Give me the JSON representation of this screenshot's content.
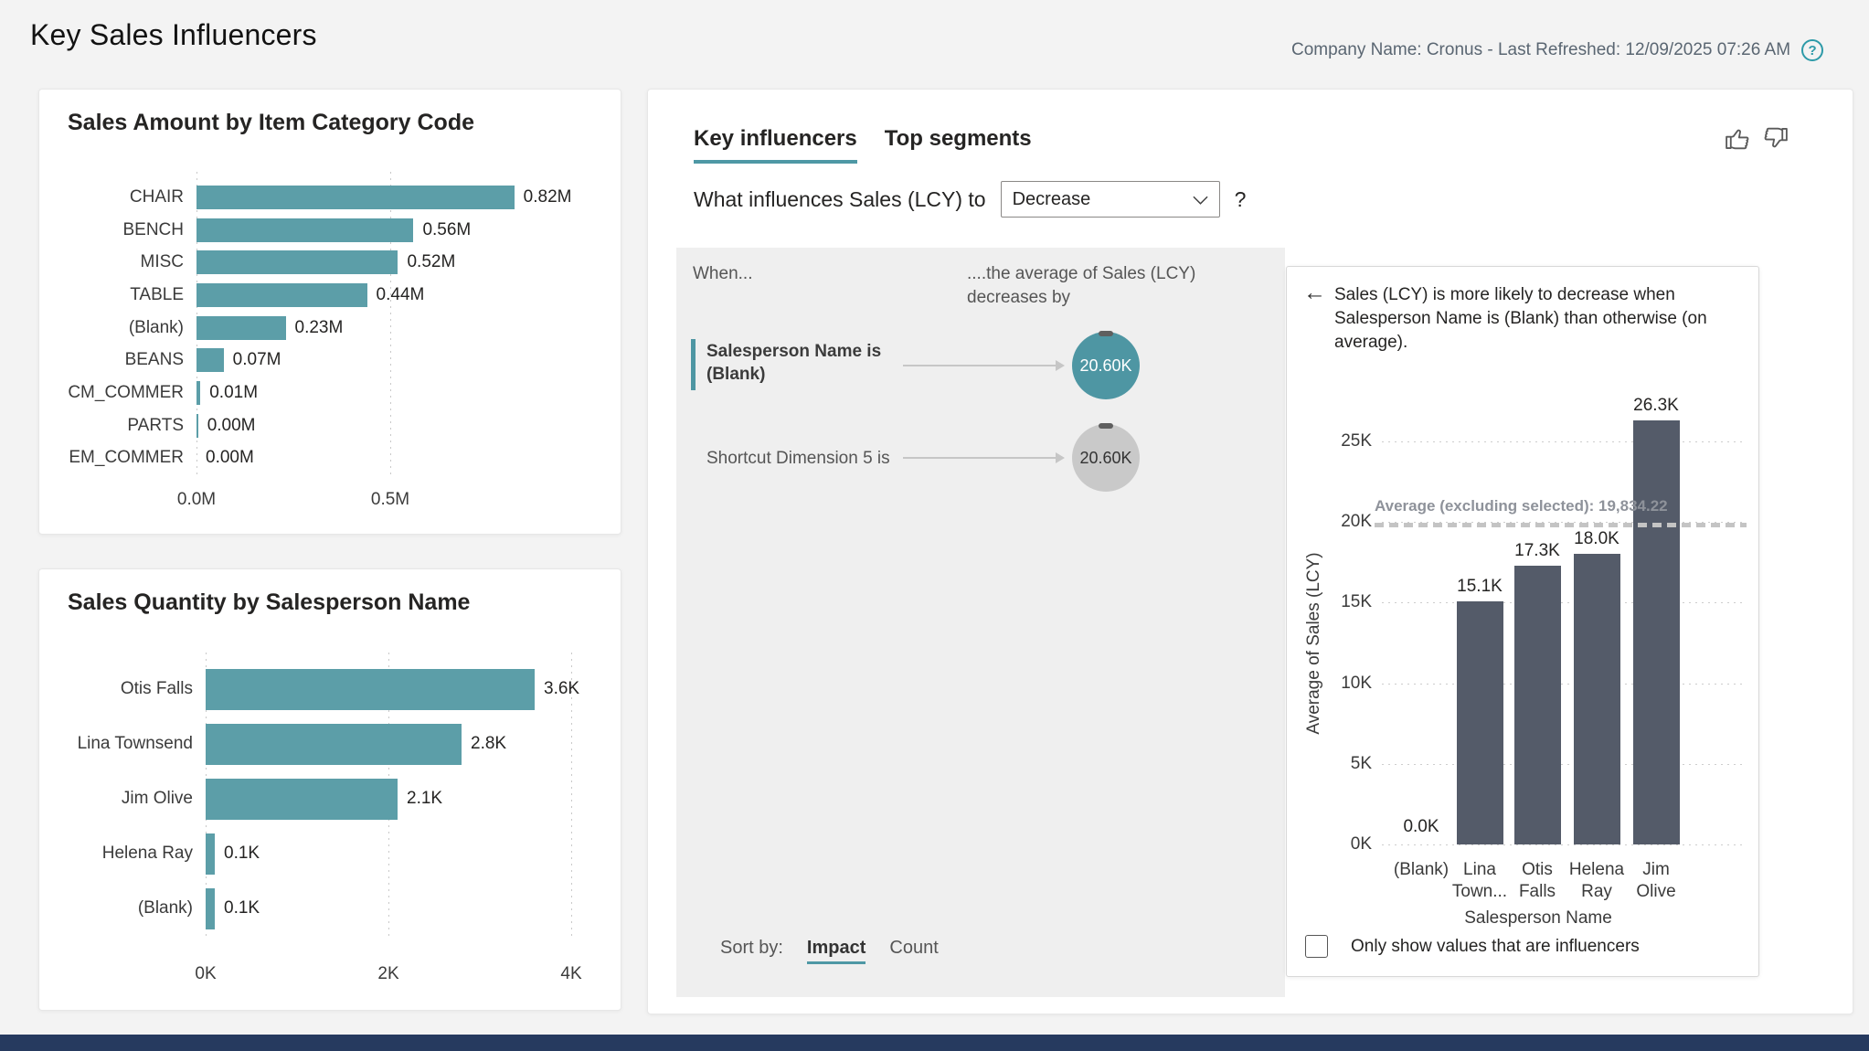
{
  "header": {
    "title": "Key Sales Influencers",
    "meta": "Company Name: Cronus - Last Refreshed: 12/09/2025 07:26 AM",
    "help_glyph": "?"
  },
  "colors": {
    "teal_bar": "#5c9ea8",
    "accent": "#4e98a5",
    "dark_bar": "#545b69",
    "bubble_teal": "#4e96a3",
    "bubble_gray": "#c9c9c9",
    "help_teal": "#2d9aa8",
    "footer_navy": "#263a5f"
  },
  "influencer_panel": {
    "tabs": [
      {
        "label": "Key influencers",
        "active": true
      },
      {
        "label": "Top segments",
        "active": false
      }
    ],
    "icons": [
      "thumb-up-icon",
      "thumb-down-icon"
    ],
    "question_prefix": "What influences Sales (LCY) to",
    "dropdown_value": "Decrease",
    "question_suffix": "?",
    "when_label": "When...",
    "average_caption_line1": "....the average of Sales (LCY)",
    "average_caption_line2": "decreases by",
    "influencers": [
      {
        "condition_line1": "Salesperson Name is",
        "condition_line2": "(Blank)",
        "value": "20.60K",
        "style": "teal",
        "selected": true
      },
      {
        "condition_line1": "Shortcut Dimension 5 is",
        "condition_line2": "",
        "value": "20.60K",
        "style": "gray",
        "selected": false
      }
    ],
    "sort_by_label": "Sort by:",
    "sort_options": [
      {
        "label": "Impact",
        "active": true
      },
      {
        "label": "Count",
        "active": false
      }
    ],
    "detail": {
      "back_glyph": "←",
      "headline": "Sales (LCY) is more likely to decrease when Salesperson Name is (Blank) than otherwise (on average).",
      "checkbox_label": "Only show values that are influencers",
      "checkbox_checked": false
    }
  },
  "chart_data": [
    {
      "id": "sales-amount-by-item-category",
      "type": "bar",
      "orientation": "horizontal",
      "title": "Sales Amount by Item Category Code",
      "categories": [
        "CHAIR",
        "BENCH",
        "MISC",
        "TABLE",
        "(Blank)",
        "BEANS",
        "CM_COMMER",
        "PARTS",
        "EM_COMMER"
      ],
      "values": [
        0.82,
        0.56,
        0.52,
        0.44,
        0.23,
        0.07,
        0.01,
        0.004,
        0
      ],
      "value_labels": [
        "0.82M",
        "0.56M",
        "0.52M",
        "0.44M",
        "0.23M",
        "0.07M",
        "0.01M",
        "0.00M",
        "0.00M"
      ],
      "x_ticks": [
        {
          "value": 0,
          "label": "0.0M"
        },
        {
          "value": 0.5,
          "label": "0.5M"
        }
      ],
      "xlim": [
        0,
        1.0
      ],
      "unit": "M",
      "grid": "dotted-vertical"
    },
    {
      "id": "sales-quantity-by-salesperson",
      "type": "bar",
      "orientation": "horizontal",
      "title": "Sales Quantity by Salesperson Name",
      "categories": [
        "Otis Falls",
        "Lina Townsend",
        "Jim Olive",
        "Helena Ray",
        "(Blank)"
      ],
      "values": [
        3.6,
        2.8,
        2.1,
        0.1,
        0.1
      ],
      "value_labels": [
        "3.6K",
        "2.8K",
        "2.1K",
        "0.1K",
        "0.1K"
      ],
      "x_ticks": [
        {
          "value": 0,
          "label": "0K"
        },
        {
          "value": 2,
          "label": "2K"
        },
        {
          "value": 4,
          "label": "4K"
        }
      ],
      "xlim": [
        0,
        4.2
      ],
      "unit": "K",
      "grid": "dotted-vertical"
    },
    {
      "id": "average-sales-by-salesperson",
      "type": "bar",
      "orientation": "vertical",
      "title": "",
      "categories": [
        "(Blank)",
        "Lina Town...",
        "Otis Falls",
        "Helena Ray",
        "Jim Olive"
      ],
      "category_lines": [
        [
          "(Blank)"
        ],
        [
          "Lina",
          "Town..."
        ],
        [
          "Otis",
          "Falls"
        ],
        [
          "Helena",
          "Ray"
        ],
        [
          "Jim",
          "Olive"
        ]
      ],
      "values": [
        0,
        15100,
        17300,
        18000,
        26300
      ],
      "value_labels": [
        "0.0K",
        "15.1K",
        "17.3K",
        "18.0K",
        "26.3K"
      ],
      "y_ticks": [
        {
          "value": 0,
          "label": "0K"
        },
        {
          "value": 5000,
          "label": "5K"
        },
        {
          "value": 10000,
          "label": "10K"
        },
        {
          "value": 15000,
          "label": "15K"
        },
        {
          "value": 20000,
          "label": "20K"
        },
        {
          "value": 25000,
          "label": "25K"
        }
      ],
      "ylim": [
        0,
        27500
      ],
      "ylabel": "Average of Sales (LCY)",
      "xlabel": "Salesperson Name",
      "reference_line": {
        "label": "Average (excluding selected): 19,834.22",
        "value": 19834.22,
        "style": "dashed"
      },
      "grid": "dotted-horizontal"
    }
  ]
}
